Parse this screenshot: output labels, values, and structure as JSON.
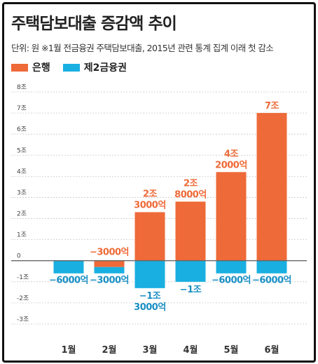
{
  "chart_data": {
    "type": "bar",
    "title": "주택담보대출 증감액 추이",
    "subtitle": "단위: 원   ※1월 전금융권 주택담보대출, 2015년 관련 통계 집계 이래 첫 감소",
    "categories": [
      "1월",
      "2월",
      "3월",
      "4월",
      "5월",
      "6월"
    ],
    "y_ticks": [
      "8조",
      "7조",
      "6조",
      "5조",
      "4조",
      "3조",
      "2조",
      "1조",
      "0",
      "-1조",
      "-2조",
      "-3조"
    ],
    "ylim": [
      -3,
      8
    ],
    "y_unit": "조원",
    "series": [
      {
        "name": "은행",
        "color": "#ee6a38",
        "values": [
          0,
          -0.3,
          2.3,
          2.8,
          4.2,
          7.0
        ],
        "labels": [
          "",
          "−3000억",
          "2조\n3000억",
          "2조\n8000억",
          "4조\n2000억",
          "7조"
        ]
      },
      {
        "name": "제2금융권",
        "color": "#19afe1",
        "values": [
          -0.6,
          -0.3,
          -1.3,
          -1.0,
          -0.6,
          -0.6
        ],
        "labels": [
          "−6000억",
          "−3000억",
          "−1조\n3000억",
          "−1조",
          "−6000억",
          "−6000억"
        ]
      }
    ],
    "grid": true
  }
}
